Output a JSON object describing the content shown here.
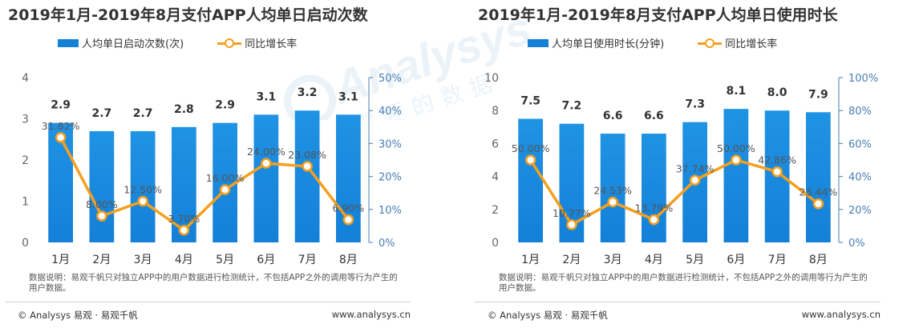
{
  "colors": {
    "bar": "#1480d8",
    "bar_light": "#1f93e4",
    "line": "#f59f1e",
    "axis_right": "#4a7eb5",
    "axis_left": "#666666",
    "grid": "#e6e6e6"
  },
  "watermark": {
    "brand": "Analysys",
    "tagline": "需要的数据"
  },
  "chart_data": [
    {
      "type": "bar",
      "title": "2019年1月-2019年8月支付APP人均单日启动次数",
      "categories": [
        "1月",
        "2月",
        "3月",
        "4月",
        "5月",
        "6月",
        "7月",
        "8月"
      ],
      "series": [
        {
          "name": "人均单日启动次数(次)",
          "type": "bar",
          "axis": "left",
          "values": [
            2.9,
            2.7,
            2.7,
            2.8,
            2.9,
            3.1,
            3.2,
            3.1
          ],
          "labels": [
            "2.9",
            "2.7",
            "2.7",
            "2.8",
            "2.9",
            "3.1",
            "3.2",
            "3.1"
          ]
        },
        {
          "name": "同比增长率",
          "type": "line",
          "axis": "right",
          "values": [
            31.82,
            8.0,
            12.5,
            3.7,
            16.0,
            24.0,
            23.08,
            6.9
          ],
          "labels": [
            "31.82%",
            "8.00%",
            "12.50%",
            "3.70%",
            "16.00%",
            "24.00%",
            "23.08%",
            "6.90%"
          ]
        }
      ],
      "ylim_left": [
        0,
        4
      ],
      "yticks_left": [
        "0",
        "1",
        "2",
        "3",
        "4"
      ],
      "ylim_right": [
        0,
        50
      ],
      "yticks_right": [
        "0%",
        "10%",
        "20%",
        "30%",
        "40%",
        "50%"
      ],
      "grid": false,
      "legend": "top",
      "note": "数据说明：易观千帆只对独立APP中的用户数据进行检测统计，不包括APP之外的调用等行为产生的用户数据。",
      "footer_left": "© Analysys 易观 · 易观千帆",
      "footer_right": "www.analysys.cn"
    },
    {
      "type": "bar",
      "title": "2019年1月-2019年8月支付APP人均单日使用时长",
      "categories": [
        "1月",
        "2月",
        "3月",
        "4月",
        "5月",
        "6月",
        "7月",
        "8月"
      ],
      "series": [
        {
          "name": "人均单日使用时长(分钟)",
          "type": "bar",
          "axis": "left",
          "values": [
            7.5,
            7.2,
            6.6,
            6.6,
            7.3,
            8.1,
            8.0,
            7.9
          ],
          "labels": [
            "7.5",
            "7.2",
            "6.6",
            "6.6",
            "7.3",
            "8.1",
            "8.0",
            "7.9"
          ]
        },
        {
          "name": "同比增长率",
          "type": "line",
          "axis": "right",
          "values": [
            50.0,
            10.77,
            24.53,
            13.79,
            37.74,
            50.0,
            42.86,
            23.44
          ],
          "labels": [
            "50.00%",
            "10.77%",
            "24.53%",
            "13.79%",
            "37.74%",
            "50.00%",
            "42.86%",
            "23.44%"
          ]
        }
      ],
      "ylim_left": [
        0,
        10
      ],
      "yticks_left": [
        "0",
        "2",
        "4",
        "6",
        "8",
        "10"
      ],
      "ylim_right": [
        0,
        100
      ],
      "yticks_right": [
        "0%",
        "20%",
        "40%",
        "60%",
        "80%",
        "100%"
      ],
      "grid": false,
      "legend": "top",
      "note": "数据说明：易观千帆只对独立APP中的用户数据进行检测统计，不包括APP之外的调用等行为产生的用户数据。",
      "footer_left": "© Analysys 易观 · 易观千帆",
      "footer_right": "www.analysys.cn"
    }
  ]
}
